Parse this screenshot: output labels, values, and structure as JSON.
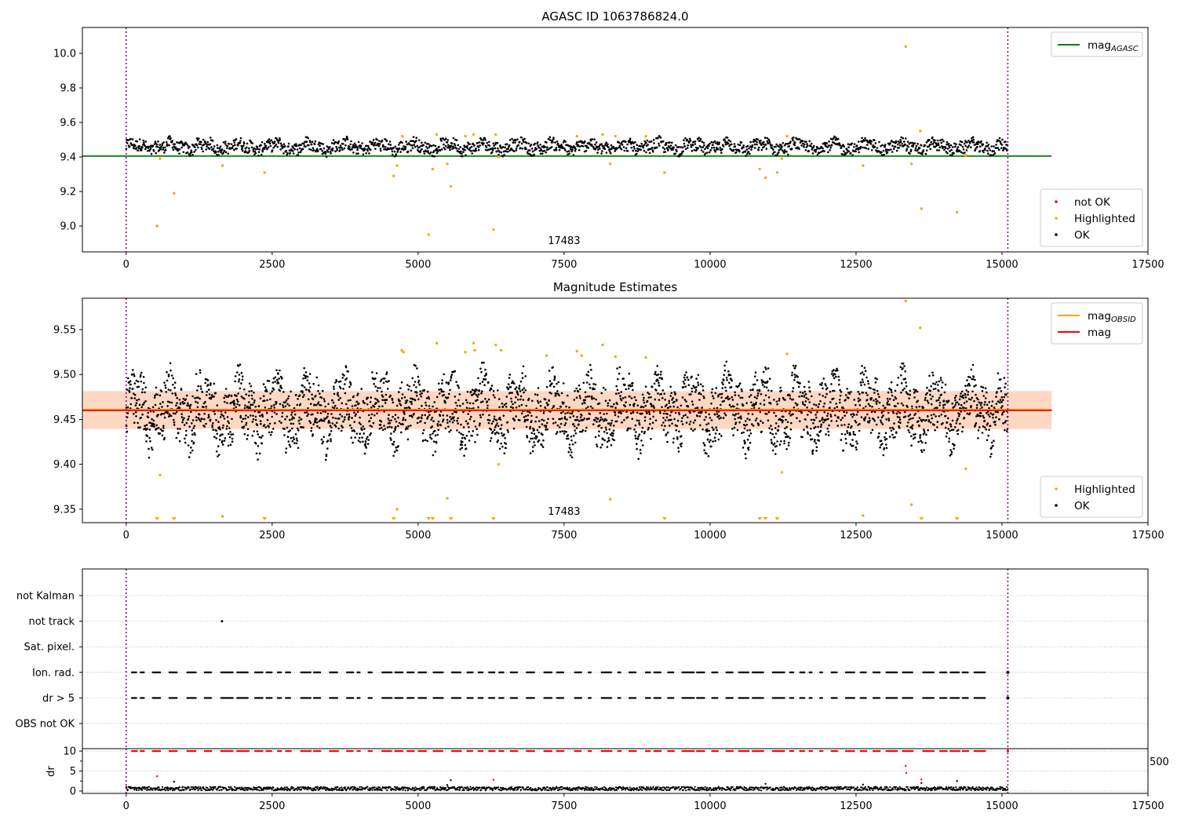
{
  "chart_data": [
    {
      "id": "p1",
      "type": "scatter",
      "title": "AGASC ID 1063786824.0",
      "xlim": [
        -750,
        17500
      ],
      "ylim": [
        8.85,
        10.15
      ],
      "xticks": [
        0,
        2500,
        5000,
        7500,
        10000,
        12500,
        15000,
        17500
      ],
      "yticks": [
        9.0,
        9.2,
        9.4,
        9.6,
        9.8,
        10.0
      ],
      "ytick_decimals": 1,
      "obs_boundaries": [
        0,
        15100
      ],
      "obs_label": {
        "text": "17483",
        "x": 7500
      },
      "lines": [
        {
          "name": "mag",
          "sub": "AGASC",
          "y": 9.405,
          "x0": -750,
          "x1": 15850,
          "color": "#008000"
        }
      ],
      "band": null,
      "ok_band": {
        "x0": 0,
        "x1": 15100,
        "center": 9.46,
        "amp": 0.05,
        "count": 1800,
        "color": "#000000"
      },
      "highlighted": {
        "color": "#ffa500",
        "points": [
          [
            530,
            9.0
          ],
          [
            580,
            9.39
          ],
          [
            820,
            9.19
          ],
          [
            1650,
            9.35
          ],
          [
            2370,
            9.31
          ],
          [
            4580,
            9.29
          ],
          [
            4640,
            9.35
          ],
          [
            4730,
            9.52
          ],
          [
            5180,
            8.95
          ],
          [
            5250,
            9.33
          ],
          [
            5320,
            9.53
          ],
          [
            5500,
            9.36
          ],
          [
            5560,
            9.23
          ],
          [
            5810,
            9.52
          ],
          [
            5950,
            9.53
          ],
          [
            6290,
            8.98
          ],
          [
            6330,
            9.53
          ],
          [
            6380,
            9.4
          ],
          [
            7720,
            9.52
          ],
          [
            8160,
            9.53
          ],
          [
            8290,
            9.36
          ],
          [
            8380,
            9.52
          ],
          [
            8900,
            9.52
          ],
          [
            9220,
            9.31
          ],
          [
            10850,
            9.33
          ],
          [
            10950,
            9.28
          ],
          [
            11150,
            9.31
          ],
          [
            11230,
            9.39
          ],
          [
            11320,
            9.52
          ],
          [
            12620,
            9.35
          ],
          [
            13350,
            10.04
          ],
          [
            13450,
            9.36
          ],
          [
            13600,
            9.55
          ],
          [
            13620,
            9.1
          ],
          [
            14230,
            9.08
          ],
          [
            14380,
            9.41
          ]
        ]
      },
      "not_ok": {
        "color": "#ff0000",
        "points": []
      },
      "legends": [
        {
          "position": "top-right",
          "entries": [
            {
              "label": "mag",
              "sub": "AGASC",
              "kind": "line",
              "color": "#008000"
            }
          ]
        },
        {
          "position": "bottom-right",
          "entries": [
            {
              "label": "not OK",
              "kind": "dot",
              "color": "#ff0000"
            },
            {
              "label": "Highlighted",
              "kind": "dot",
              "color": "#ffa500"
            },
            {
              "label": "OK",
              "kind": "dot",
              "color": "#000000"
            }
          ]
        }
      ]
    },
    {
      "id": "p2",
      "type": "scatter",
      "title": "Magnitude Estimates",
      "xlim": [
        -750,
        17500
      ],
      "ylim": [
        9.335,
        9.585
      ],
      "xticks": [
        0,
        2500,
        5000,
        7500,
        10000,
        12500,
        15000,
        17500
      ],
      "yticks": [
        9.35,
        9.4,
        9.45,
        9.5,
        9.55
      ],
      "ytick_decimals": 2,
      "obs_boundaries": [
        0,
        15100
      ],
      "obs_label": {
        "text": "17483",
        "x": 7500
      },
      "lines": [
        {
          "name": "mag",
          "sub": "OBSID",
          "y": 9.461,
          "x0": -750,
          "x1": 15850,
          "color": "#ffa500"
        },
        {
          "name": "mag",
          "sub": "",
          "y": 9.46,
          "x0": -750,
          "x1": 15850,
          "color": "#ff0000"
        }
      ],
      "band": {
        "y0": 9.439,
        "y1": 9.482,
        "x0": -750,
        "x1": 15850,
        "color": "#ff0000",
        "opacity": 0.12,
        "inner": {
          "y0": 9.44,
          "y1": 9.481,
          "color": "#ffa500",
          "opacity": 0.12
        }
      },
      "ok_band": {
        "x0": 0,
        "x1": 15100,
        "center": 9.46,
        "amp": 0.045,
        "count": 3200,
        "color": "#000000"
      },
      "highlighted": {
        "color": "#ffa500",
        "points": [
          [
            580,
            9.388
          ],
          [
            1650,
            9.342
          ],
          [
            4640,
            9.35
          ],
          [
            4720,
            9.527
          ],
          [
            4750,
            9.525
          ],
          [
            5320,
            9.535
          ],
          [
            5500,
            9.362
          ],
          [
            5810,
            9.525
          ],
          [
            5950,
            9.535
          ],
          [
            5970,
            9.527
          ],
          [
            6330,
            9.533
          ],
          [
            6380,
            9.4
          ],
          [
            6420,
            9.527
          ],
          [
            7200,
            9.521
          ],
          [
            7720,
            9.526
          ],
          [
            7800,
            9.521
          ],
          [
            8160,
            9.533
          ],
          [
            8290,
            9.361
          ],
          [
            8380,
            9.52
          ],
          [
            8900,
            9.519
          ],
          [
            11230,
            9.391
          ],
          [
            11320,
            9.523
          ],
          [
            12620,
            9.343
          ],
          [
            13350,
            9.582
          ],
          [
            13450,
            9.355
          ],
          [
            13600,
            9.552
          ],
          [
            14380,
            9.395
          ]
        ],
        "off_low": [
          530,
          820,
          2370,
          4580,
          5180,
          5250,
          5560,
          6290,
          9220,
          10850,
          10950,
          11150,
          13620,
          14230
        ]
      },
      "not_ok": {
        "color": "#ff0000",
        "points": []
      },
      "legends": [
        {
          "position": "top-right",
          "entries": [
            {
              "label": "mag",
              "sub": "OBSID",
              "kind": "line",
              "color": "#ffa500"
            },
            {
              "label": "mag",
              "sub": "",
              "kind": "line",
              "color": "#ff0000"
            }
          ]
        },
        {
          "position": "bottom-right",
          "entries": [
            {
              "label": "Highlighted",
              "kind": "dot",
              "color": "#ffa500"
            },
            {
              "label": "OK",
              "kind": "dot",
              "color": "#000000"
            }
          ]
        }
      ]
    },
    {
      "id": "p3",
      "type": "scatter",
      "title": "",
      "xlim": [
        -750,
        17500
      ],
      "categories": [
        "not Kalman",
        "not track",
        "Sat. pixel.",
        "Ion. rad.",
        "dr > 5",
        "OBS not OK"
      ],
      "obs_boundaries": [
        0,
        15100
      ],
      "flags": {
        "not track": [
          1640
        ],
        "Ion. rad.": "periodic",
        "dr > 5": "periodic"
      },
      "flag_range": [
        100,
        14600
      ],
      "extra_flag_points": [
        15100
      ]
    },
    {
      "id": "p4",
      "type": "scatter",
      "ylabel": "dr",
      "xlim": [
        -750,
        17500
      ],
      "ylim": [
        -0.6,
        10.6
      ],
      "yticks": [
        0,
        5,
        10
      ],
      "xticks": [
        0,
        2500,
        5000,
        7500,
        10000,
        12500,
        15000,
        17500
      ],
      "obs_boundaries": [
        0,
        15100
      ],
      "red_top_y": 10,
      "red_extra": [
        [
          530,
          3.7
        ],
        [
          6290,
          2.8
        ],
        [
          13350,
          6.3
        ],
        [
          13360,
          4.5
        ],
        [
          13620,
          2.9
        ]
      ],
      "black_extra": [
        [
          820,
          2.3
        ],
        [
          5560,
          2.7
        ],
        [
          10950,
          1.8
        ],
        [
          12620,
          1.6
        ],
        [
          14230,
          2.5
        ],
        [
          13620,
          2.0
        ],
        [
          5500,
          1.5
        ]
      ],
      "clipped_label": "500"
    }
  ]
}
